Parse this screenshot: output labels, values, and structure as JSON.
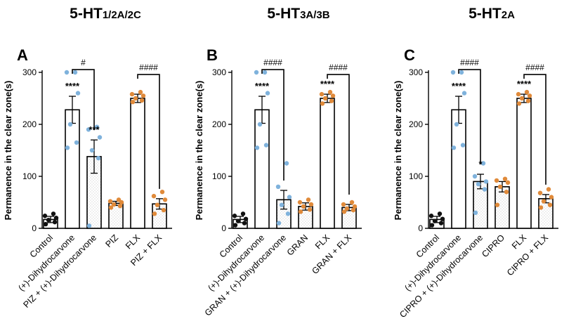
{
  "colors": {
    "control": "#111111",
    "blue": "#7fb2dc",
    "orange": "#e08a3a",
    "bar_edge": "#000000",
    "pattern_dot": "#c9c9c9"
  },
  "ylabel": "Permanence in the clear zone(s)",
  "chart_data": [
    {
      "type": "bar",
      "panel": "A",
      "title": "5-HT",
      "title_sub": "1/2A/2C",
      "ylabel": "Permanence in the clear zone(s)",
      "ylim": [
        0,
        300
      ],
      "yticks": [
        "0",
        "100",
        "200",
        "300"
      ],
      "categories": [
        "Control",
        "(+)-Dihydrocarvone",
        "PIZ + (+)-Dihydrocarvone",
        "PIZ",
        "FLX",
        "PIZ + FLX"
      ],
      "values": [
        17,
        228,
        138,
        48,
        250,
        47
      ],
      "errors": [
        6,
        26,
        32,
        4,
        8,
        10
      ],
      "fill": [
        "none",
        "none",
        "dots",
        "dots",
        "none",
        "dots"
      ],
      "point_color": [
        "control",
        "blue",
        "blue",
        "orange",
        "orange",
        "orange"
      ],
      "points": [
        [
          8,
          12,
          16,
          20,
          24,
          28
        ],
        [
          155,
          165,
          200,
          260,
          300,
          300
        ],
        [
          5,
          135,
          150,
          175,
          190,
          195
        ],
        [
          40,
          43,
          46,
          50,
          52,
          55
        ],
        [
          243,
          246,
          250,
          255,
          258,
          262
        ],
        [
          28,
          35,
          45,
          55,
          62,
          70
        ]
      ],
      "stars": [
        {
          "index": 1,
          "label": "****"
        },
        {
          "index": 2,
          "label": "***"
        }
      ],
      "brackets": [
        {
          "from": 1,
          "to": 2,
          "label": "#"
        },
        {
          "from": 4,
          "to": 5,
          "label": "####"
        }
      ]
    },
    {
      "type": "bar",
      "panel": "B",
      "title": "5-HT",
      "title_sub": "3A/3B",
      "ylabel": "Permanence in the clear zone(s)",
      "ylim": [
        0,
        300
      ],
      "yticks": [
        "0",
        "100",
        "200",
        "300"
      ],
      "categories": [
        "Control",
        "(+)-Dihydrocarvone",
        "GRAN + (+)-Dihydrocarvone",
        "GRAN",
        "FLX",
        "GRAN + FLX"
      ],
      "values": [
        17,
        228,
        55,
        42,
        250,
        40
      ],
      "errors": [
        6,
        26,
        18,
        7,
        8,
        6
      ],
      "fill": [
        "none",
        "none",
        "dots",
        "dots",
        "none",
        "dots"
      ],
      "point_color": [
        "control",
        "blue",
        "blue",
        "orange",
        "orange",
        "orange"
      ],
      "points": [
        [
          6,
          10,
          14,
          18,
          24,
          28
        ],
        [
          155,
          160,
          200,
          260,
          300,
          300
        ],
        [
          10,
          28,
          45,
          60,
          80,
          125
        ],
        [
          32,
          36,
          42,
          46,
          50,
          55
        ],
        [
          240,
          245,
          250,
          255,
          258,
          262
        ],
        [
          32,
          35,
          38,
          42,
          46,
          50
        ]
      ],
      "stars": [
        {
          "index": 1,
          "label": "****"
        },
        {
          "index": 4,
          "label": "****"
        }
      ],
      "brackets": [
        {
          "from": 1,
          "to": 2,
          "label": "####"
        },
        {
          "from": 4,
          "to": 5,
          "label": "####"
        }
      ]
    },
    {
      "type": "bar",
      "panel": "C",
      "title": "5-HT",
      "title_sub": "2A",
      "ylabel": "Permanence in the clear zone(s)",
      "ylim": [
        0,
        300
      ],
      "yticks": [
        "0",
        "100",
        "200",
        "300"
      ],
      "categories": [
        "Control",
        "(+)-Dihydrocarvone",
        "CIPRO + (+)-Dihydrocarvone",
        "CIPRO",
        "FLX",
        "CIPRO + FLX"
      ],
      "values": [
        17,
        228,
        90,
        80,
        250,
        57
      ],
      "errors": [
        6,
        26,
        14,
        10,
        8,
        8
      ],
      "fill": [
        "none",
        "none",
        "dots",
        "dots",
        "none",
        "dots"
      ],
      "point_color": [
        "control",
        "blue",
        "blue",
        "orange",
        "orange",
        "orange"
      ],
      "points": [
        [
          6,
          10,
          14,
          18,
          24,
          28
        ],
        [
          155,
          160,
          200,
          260,
          300,
          300
        ],
        [
          30,
          75,
          85,
          90,
          100,
          125
        ],
        [
          45,
          70,
          80,
          88,
          92,
          95
        ],
        [
          240,
          245,
          250,
          255,
          258,
          262
        ],
        [
          40,
          45,
          52,
          60,
          68,
          75
        ]
      ],
      "stars": [
        {
          "index": 1,
          "label": "****"
        },
        {
          "index": 2,
          "label": "*"
        },
        {
          "index": 4,
          "label": "****"
        }
      ],
      "brackets": [
        {
          "from": 1,
          "to": 2,
          "label": "####"
        },
        {
          "from": 4,
          "to": 5,
          "label": "####"
        }
      ]
    }
  ]
}
